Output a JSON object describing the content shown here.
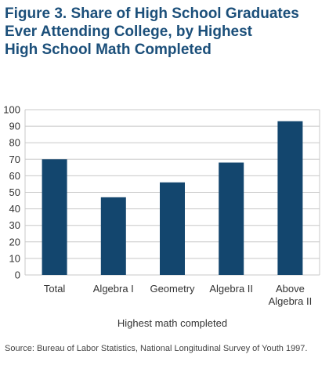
{
  "title_lines": [
    "Figure 3. Share of High School Graduates",
    "Ever Attending College, by Highest",
    "High School Math Completed"
  ],
  "source": "Source: Bureau of Labor Statistics, National Longitudinal Survey of Youth 1997.",
  "colors": {
    "title": "#1b4f7a",
    "bar": "#13466e",
    "grid": "#c8c8c8"
  },
  "chart_data": {
    "type": "bar",
    "title": "Figure 3. Share of High School Graduates Ever Attending College, by Highest High School Math Completed",
    "categories": [
      "Total",
      "Algebra I",
      "Geometry",
      "Algebra II",
      "Above Algebra II"
    ],
    "category_label_lines": [
      [
        "Total"
      ],
      [
        "Algebra I"
      ],
      [
        "Geometry"
      ],
      [
        "Algebra II"
      ],
      [
        "Above",
        "Algebra II"
      ]
    ],
    "values": [
      70,
      47,
      56,
      68,
      93
    ],
    "xlabel": "Highest math completed",
    "ylabel": "",
    "ylim": [
      0,
      100
    ],
    "yticks": [
      0,
      10,
      20,
      30,
      40,
      50,
      60,
      70,
      80,
      90,
      100
    ],
    "grid": true,
    "legend": "none"
  }
}
